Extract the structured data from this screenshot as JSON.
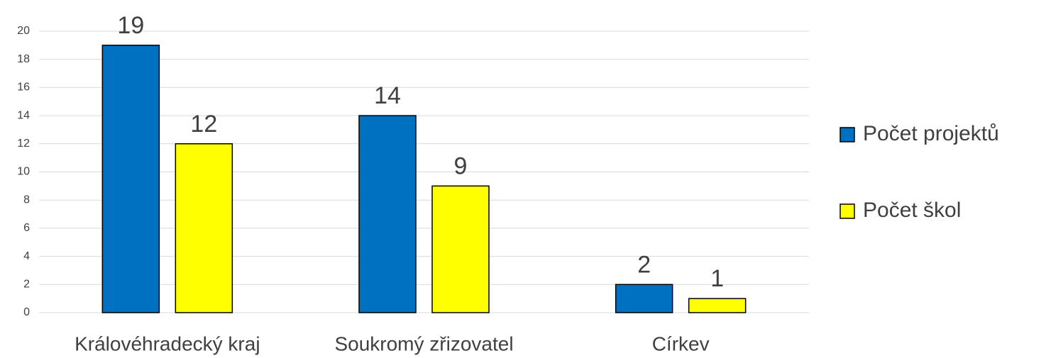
{
  "chart_data": {
    "type": "bar",
    "categories": [
      "Královéhradecký kraj",
      "Soukromý zřizovatel",
      "Církev"
    ],
    "series": [
      {
        "name": "Počet projektů",
        "color": "#0070c0",
        "values": [
          19,
          14,
          2
        ]
      },
      {
        "name": "Počet škol",
        "color": "#ffff00",
        "values": [
          12,
          9,
          1
        ]
      }
    ],
    "ylim": [
      0,
      20
    ],
    "yticks": [
      0,
      2,
      4,
      6,
      8,
      10,
      12,
      14,
      16,
      18,
      20
    ],
    "grid": true,
    "legend": "right"
  }
}
